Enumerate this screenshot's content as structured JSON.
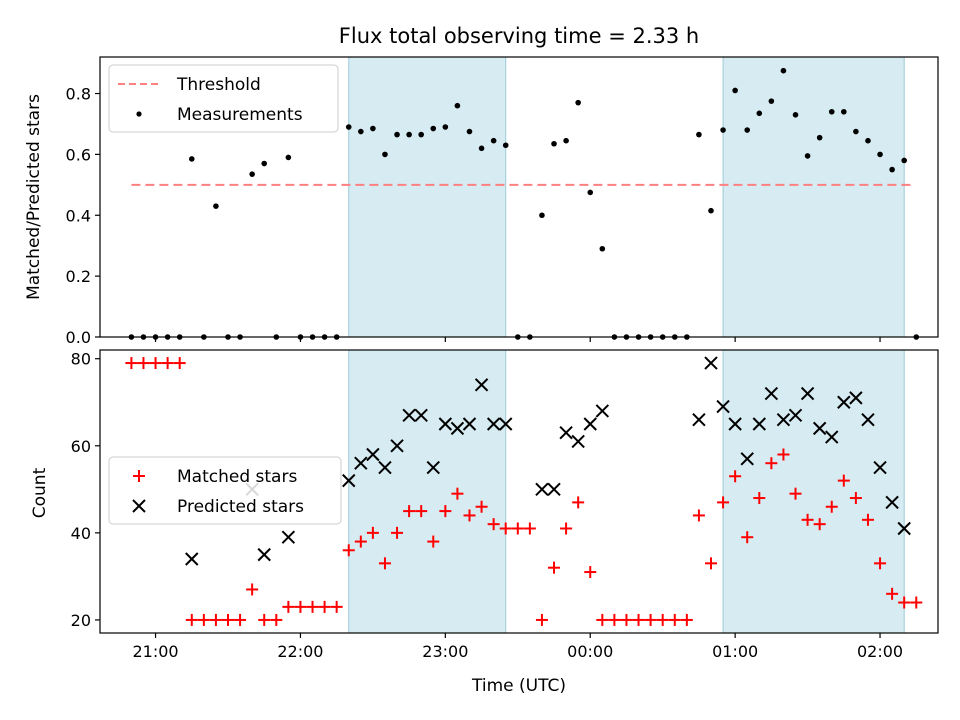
{
  "chart_data": [
    {
      "type": "scatter",
      "title": "Flux total observing time = 2.33 h",
      "xlabel": "",
      "ylabel": "Matched/Predicted stars",
      "ylim": [
        0,
        0.92
      ],
      "yticks": [
        "0.0",
        "0.2",
        "0.4",
        "0.6",
        "0.8"
      ],
      "grid": false,
      "legend_position": "upper-left",
      "shaded_intervals": [
        [
          "22:20",
          "23:25"
        ],
        [
          "00:55",
          "02:10"
        ]
      ],
      "threshold": {
        "name": "Threshold",
        "value": 0.5,
        "x_start": "20:50",
        "x_end": "02:13",
        "color": "#ff8080"
      },
      "series": [
        {
          "name": "Measurements",
          "color": "#000000",
          "marker": "dot",
          "x": [
            "20:50",
            "20:55",
            "21:00",
            "21:05",
            "21:10",
            "21:15",
            "21:20",
            "21:25",
            "21:30",
            "21:35",
            "21:40",
            "21:45",
            "21:50",
            "21:55",
            "22:00",
            "22:05",
            "22:10",
            "22:15",
            "22:20",
            "22:25",
            "22:30",
            "22:35",
            "22:40",
            "22:45",
            "22:50",
            "22:55",
            "23:00",
            "23:05",
            "23:10",
            "23:15",
            "23:20",
            "23:25",
            "23:30",
            "23:35",
            "23:40",
            "23:45",
            "23:50",
            "23:55",
            "00:00",
            "00:05",
            "00:10",
            "00:15",
            "00:20",
            "00:25",
            "00:30",
            "00:35",
            "00:40",
            "00:45",
            "00:50",
            "00:55",
            "01:00",
            "01:05",
            "01:10",
            "01:15",
            "01:20",
            "01:25",
            "01:30",
            "01:35",
            "01:40",
            "01:45",
            "01:50",
            "01:55",
            "02:00",
            "02:05",
            "02:10",
            "02:15"
          ],
          "values": [
            0,
            0,
            0,
            0,
            0,
            0.585,
            0,
            0.43,
            0,
            0,
            0.535,
            0.57,
            0,
            0.59,
            0,
            0,
            0,
            0,
            0.69,
            0.675,
            0.685,
            0.6,
            0.665,
            0.665,
            0.665,
            0.685,
            0.69,
            0.76,
            0.675,
            0.62,
            0.645,
            0.63,
            0,
            0,
            0.4,
            0.635,
            0.645,
            0.77,
            0.475,
            0.29,
            0,
            0,
            0,
            0,
            0,
            0,
            0,
            0.665,
            0.415,
            0.68,
            0.81,
            0.68,
            0.735,
            0.775,
            0.875,
            0.73,
            0.595,
            0.655,
            0.74,
            0.74,
            0.675,
            0.645,
            0.6,
            0.55,
            0.58,
            0
          ]
        }
      ]
    },
    {
      "type": "scatter",
      "title": "",
      "xlabel": "Time (UTC)",
      "ylabel": "Count",
      "ylim": [
        17,
        82
      ],
      "yticks": [
        "20",
        "40",
        "60",
        "80"
      ],
      "xticks": [
        "21:00",
        "22:00",
        "23:00",
        "00:00",
        "01:00",
        "02:00"
      ],
      "grid": false,
      "legend_position": "center-left",
      "shaded_intervals": [
        [
          "22:20",
          "23:25"
        ],
        [
          "00:55",
          "02:10"
        ]
      ],
      "series": [
        {
          "name": "Matched stars",
          "color": "#ff0000",
          "marker": "plus",
          "x": [
            "20:50",
            "20:55",
            "21:00",
            "21:05",
            "21:10",
            "21:15",
            "21:20",
            "21:25",
            "21:30",
            "21:35",
            "21:40",
            "21:45",
            "21:50",
            "21:55",
            "22:00",
            "22:05",
            "22:10",
            "22:15",
            "22:20",
            "22:25",
            "22:30",
            "22:35",
            "22:40",
            "22:45",
            "22:50",
            "22:55",
            "23:00",
            "23:05",
            "23:10",
            "23:15",
            "23:20",
            "23:25",
            "23:30",
            "23:35",
            "23:40",
            "23:45",
            "23:50",
            "23:55",
            "00:00",
            "00:05",
            "00:10",
            "00:15",
            "00:20",
            "00:25",
            "00:30",
            "00:35",
            "00:40",
            "00:45",
            "00:50",
            "00:55",
            "01:00",
            "01:05",
            "01:10",
            "01:15",
            "01:20",
            "01:25",
            "01:30",
            "01:35",
            "01:40",
            "01:45",
            "01:50",
            "01:55",
            "02:00",
            "02:05",
            "02:10",
            "02:15"
          ],
          "values": [
            79,
            79,
            79,
            79,
            79,
            20,
            20,
            20,
            20,
            20,
            27,
            20,
            20,
            23,
            23,
            23,
            23,
            23,
            36,
            38,
            40,
            33,
            40,
            45,
            45,
            38,
            45,
            49,
            44,
            46,
            42,
            41,
            41,
            41,
            20,
            32,
            41,
            47,
            31,
            20,
            20,
            20,
            20,
            20,
            20,
            20,
            20,
            44,
            33,
            47,
            53,
            39,
            48,
            56,
            58,
            49,
            43,
            42,
            46,
            52,
            48,
            43,
            33,
            26,
            24,
            24
          ]
        },
        {
          "name": "Predicted stars",
          "color": "#000000",
          "marker": "x",
          "x": [
            "21:15",
            "21:40",
            "21:45",
            "21:55",
            "22:20",
            "22:25",
            "22:30",
            "22:35",
            "22:40",
            "22:45",
            "22:50",
            "22:55",
            "23:00",
            "23:05",
            "23:10",
            "23:15",
            "23:20",
            "23:25",
            "23:40",
            "23:45",
            "23:50",
            "23:55",
            "00:00",
            "00:05",
            "00:45",
            "00:50",
            "00:55",
            "01:00",
            "01:05",
            "01:10",
            "01:15",
            "01:20",
            "01:25",
            "01:30",
            "01:35",
            "01:40",
            "01:45",
            "01:50",
            "01:55",
            "02:00",
            "02:05",
            "02:10"
          ],
          "values": [
            34,
            50,
            35,
            39,
            52,
            56,
            58,
            55,
            60,
            67,
            67,
            55,
            65,
            64,
            65,
            74,
            65,
            65,
            50,
            50,
            63,
            61,
            65,
            68,
            66,
            79,
            69,
            65,
            57,
            65,
            72,
            66,
            67,
            72,
            64,
            62,
            70,
            71,
            66,
            55,
            47,
            41
          ]
        }
      ]
    }
  ]
}
